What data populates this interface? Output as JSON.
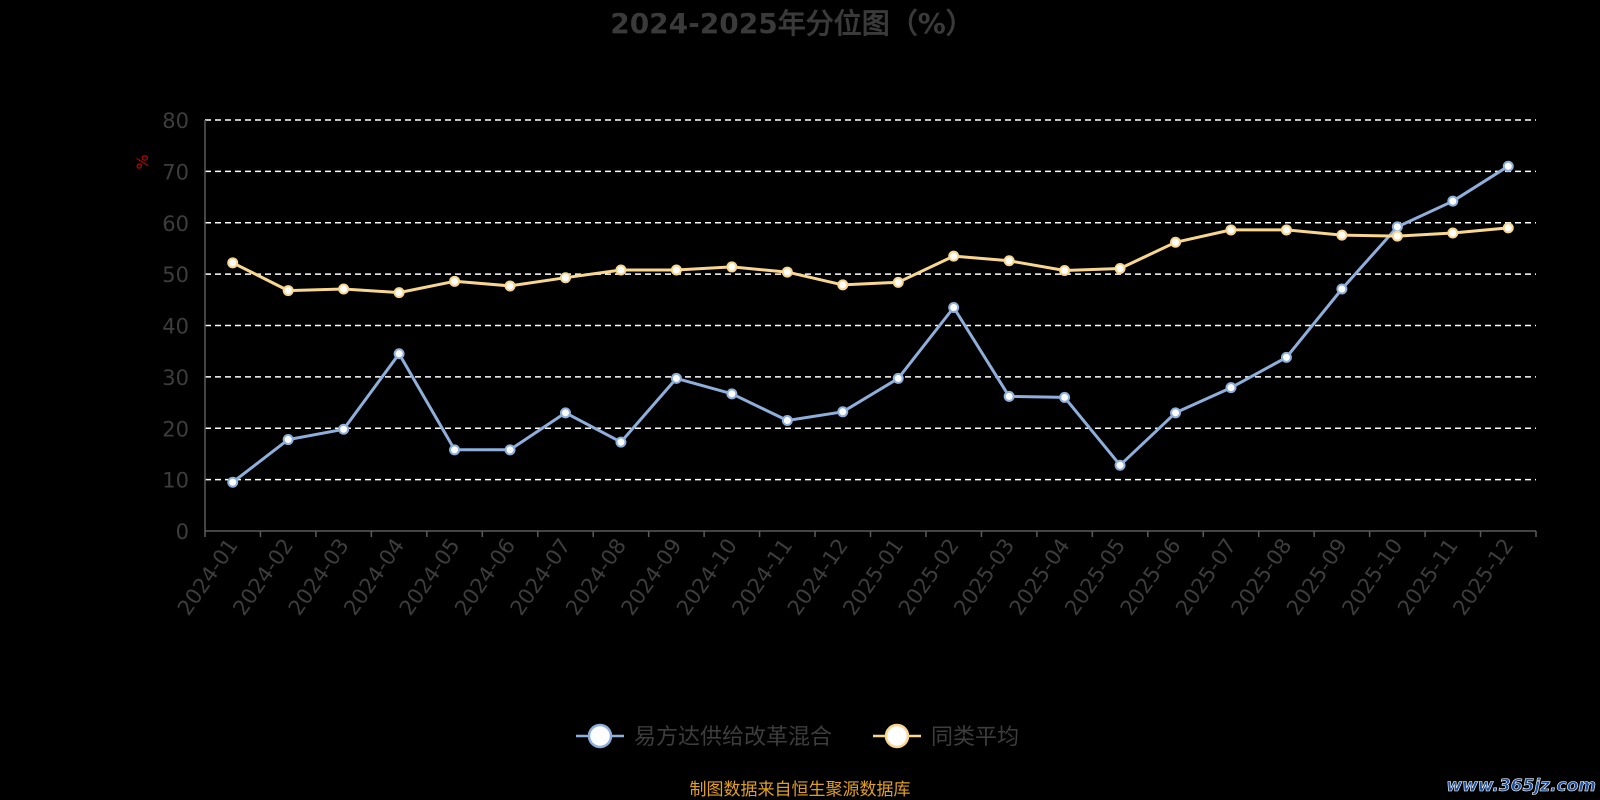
{
  "chart_data": {
    "type": "line",
    "title": "2024-2025年分位图（%）",
    "ylabel": "%",
    "ylim": [
      0,
      80
    ],
    "yticks": [
      "0",
      "10",
      "20",
      "30",
      "40",
      "50",
      "60",
      "70",
      "80"
    ],
    "grid": true,
    "legend_position": "bottom-center",
    "categories": [
      "2024-01",
      "2024-02",
      "2024-03",
      "2024-04",
      "2024-05",
      "2024-06",
      "2024-07",
      "2024-08",
      "2024-09",
      "2024-10",
      "2024-11",
      "2024-12",
      "2025-01",
      "2025-02",
      "2025-03",
      "2025-04",
      "2025-05",
      "2025-06",
      "2025-07",
      "2025-08",
      "2025-09",
      "2025-10",
      "2025-11",
      "2025-12"
    ],
    "series": [
      {
        "name": "易方达供给改革混合",
        "color": "#8eaedb",
        "values": [
          9.5,
          17.8,
          19.8,
          34.5,
          15.8,
          15.8,
          23.0,
          17.3,
          29.7,
          26.7,
          21.5,
          23.2,
          29.7,
          43.5,
          26.2,
          26.0,
          12.8,
          23.0,
          27.9,
          33.8,
          47.1,
          59.2,
          64.2,
          71.0
        ]
      },
      {
        "name": "同类平均",
        "color": "#f9d68e",
        "values": [
          52.2,
          46.8,
          47.1,
          46.4,
          48.6,
          47.7,
          49.3,
          50.8,
          50.8,
          51.4,
          50.4,
          47.9,
          48.4,
          53.5,
          52.6,
          50.7,
          51.1,
          56.2,
          58.6,
          58.6,
          57.6,
          57.4,
          58.0,
          59.0
        ]
      }
    ]
  },
  "footer": {
    "source": "制图数据来自恒生聚源数据库",
    "watermark": "www.365jz.com"
  },
  "colors": {
    "background": "#000000",
    "grid": "#ffffff",
    "marker_fill": "#ffffff"
  }
}
